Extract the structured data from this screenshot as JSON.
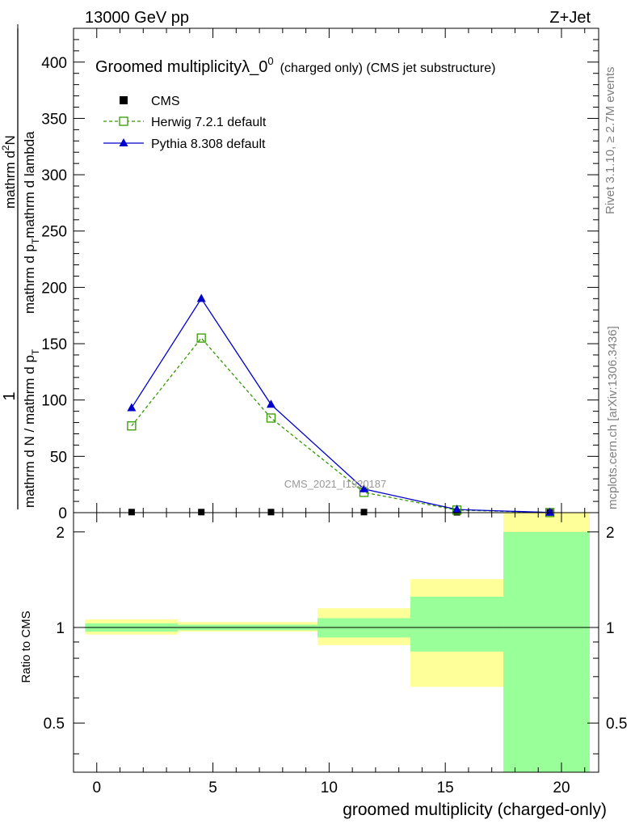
{
  "header": {
    "left": "13000 GeV pp",
    "right": "Z+Jet"
  },
  "side_labels": {
    "rivet": "Rivet 3.1.10, ≥ 2.7M events",
    "mcplots": "mcplots.cern.ch [arXiv:1306.3436]"
  },
  "chart_data": {
    "type": "line",
    "title": "Groomed multiplicityλ_0",
    "title_superscript": "0",
    "title_suffix": "(charged only) (CMS jet substructure)",
    "watermark": "CMS_2021_I1920187",
    "xlabel": "groomed multiplicity (charged-only)",
    "ylabel": {
      "numerator": "1",
      "denominator": "mathrm d N / mathrm d p",
      "denominator_sub": "T",
      "denominator_tail": "mathrm d p",
      "denominator_sub2": "T",
      "denominator_end": "mathrm d lambda",
      "right_numerator": "mathrm d",
      "right_numerator_sup": "2",
      "right_numerator_end": "N"
    },
    "ylabel_parts": {
      "frac_num": "1",
      "frac_den": "mathrm d N / mathrm d p_T",
      "lhs_num": "mathrm d",
      "lhs_den": "mathrm d p",
      "rhs": "mathrm d lambda"
    },
    "ylabel_text": {
      "frac_num": "1",
      "frac_den_a": "mathrm d N / mathrm d p",
      "frac_den_a_sub": "T",
      "num2": "mathrm d",
      "num2_sup": "2",
      "num2_end": "N",
      "den2_a": "mathrm d p",
      "den2_a_sub": "T",
      "den2_b": "mathrm d lambda"
    },
    "xlim": [
      -1,
      21.6
    ],
    "ylim": [
      0,
      430
    ],
    "xticks": [
      "0",
      "5",
      "10",
      "15",
      "20"
    ],
    "yticks": [
      "0",
      "50",
      "100",
      "150",
      "200",
      "250",
      "300",
      "350",
      "400"
    ],
    "x": [
      1.5,
      4.5,
      7.5,
      11.5,
      15.5,
      19.5
    ],
    "bin_edges": [
      -0.5,
      3.5,
      6.5,
      9.5,
      13.5,
      17.5,
      21.5
    ],
    "series": [
      {
        "name": "CMS",
        "values": [
          0.5,
          0.5,
          0.5,
          0.5,
          0.3,
          0.2
        ],
        "color": "#000000",
        "marker": "square-filled"
      },
      {
        "name": "Herwig 7.2.1 default",
        "values": [
          77,
          155,
          84,
          18,
          2.3,
          0.1
        ],
        "color": "#339900",
        "marker": "square-open",
        "dashed": true
      },
      {
        "name": "Pythia 8.308 default",
        "values": [
          93,
          190,
          96,
          21,
          2.8,
          0.15
        ],
        "color": "#0000cc",
        "marker": "triangle-filled"
      }
    ],
    "ratio": {
      "ylabel": "Ratio to CMS",
      "yticks": [
        "0.5",
        "1",
        "2"
      ],
      "ytick_values": [
        0.5,
        1,
        2
      ],
      "ylim": [
        0.35,
        2.3
      ],
      "log": true,
      "bands": [
        {
          "x0": -0.5,
          "x1": 3.5,
          "stat": [
            0.97,
            1.03
          ],
          "total": [
            0.95,
            1.06
          ]
        },
        {
          "x0": 3.5,
          "x1": 9.5,
          "stat": [
            0.98,
            1.02
          ],
          "total": [
            0.97,
            1.04
          ]
        },
        {
          "x0": 9.5,
          "x1": 13.5,
          "stat": [
            0.93,
            1.07
          ],
          "total": [
            0.88,
            1.15
          ]
        },
        {
          "x0": 13.5,
          "x1": 17.5,
          "stat": [
            0.84,
            1.25
          ],
          "total": [
            0.65,
            1.42
          ]
        },
        {
          "x0": 17.5,
          "x1": 21.5,
          "stat": [
            0.35,
            2.0
          ],
          "total": [
            0.35,
            2.3
          ]
        }
      ],
      "band_colors": {
        "stat": "#99ff99",
        "total": "#ffff99"
      }
    }
  }
}
